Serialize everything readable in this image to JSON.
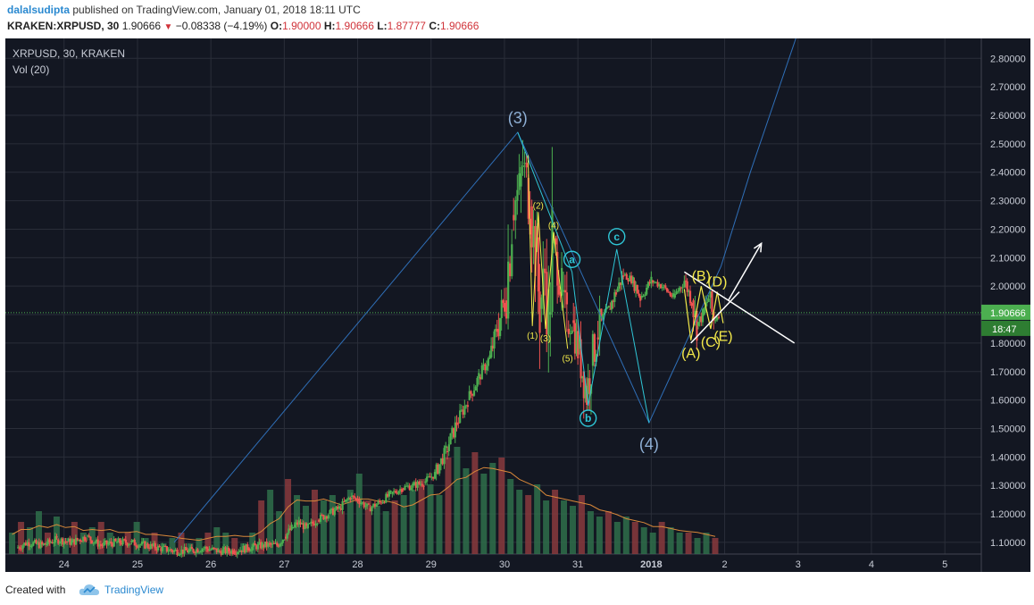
{
  "header": {
    "author": "dalalsudipta",
    "published_text": "published on TradingView.com, January 01, 2018 18:11 UTC",
    "symbol_line": "KRAKEN:XRPUSD, 30",
    "last_price": "1.90666",
    "change": "−0.08338 (−4.19%)",
    "open_label": "O:",
    "open": "1.90000",
    "high_label": "H:",
    "high": "1.90666",
    "low_label": "L:",
    "low": "1.87777",
    "close_label": "C:",
    "close": "1.90666"
  },
  "chart_data": {
    "type": "candlestick",
    "legend_symbol": "XRPUSD, 30, KRAKEN",
    "legend_indicator": "Vol (20)",
    "x_ticks": [
      "24",
      "25",
      "26",
      "27",
      "28",
      "29",
      "30",
      "31",
      "2018",
      "2",
      "3",
      "4",
      "5"
    ],
    "y_ticks": [
      "1.10000",
      "1.20000",
      "1.30000",
      "1.40000",
      "1.50000",
      "1.60000",
      "1.70000",
      "1.80000",
      "1.90000",
      "2.00000",
      "2.10000",
      "2.20000",
      "2.30000",
      "2.40000",
      "2.50000",
      "2.60000",
      "2.70000",
      "2.80000"
    ],
    "ylim": [
      1.03,
      2.87
    ],
    "xlim": [
      23.2,
      28.5
    ],
    "current_price_label": "1.90666",
    "countdown_label": "18:47",
    "price_path": [
      [
        23.35,
        1.08
      ],
      [
        23.5,
        1.1
      ],
      [
        23.7,
        1.09
      ],
      [
        23.9,
        1.11
      ],
      [
        24.1,
        1.1
      ],
      [
        24.3,
        1.12
      ],
      [
        24.5,
        1.09
      ],
      [
        24.7,
        1.1
      ],
      [
        24.9,
        1.1
      ],
      [
        25.1,
        1.09
      ],
      [
        25.3,
        1.08
      ],
      [
        25.5,
        1.07
      ],
      [
        25.7,
        1.07
      ],
      [
        25.9,
        1.08
      ],
      [
        26.1,
        1.07
      ],
      [
        26.3,
        1.07
      ],
      [
        26.5,
        1.08
      ],
      [
        26.7,
        1.09
      ],
      [
        26.9,
        1.09
      ],
      [
        27.0,
        1.12
      ],
      [
        27.1,
        1.15
      ],
      [
        27.2,
        1.17
      ],
      [
        27.3,
        1.15
      ],
      [
        27.45,
        1.18
      ],
      [
        27.6,
        1.2
      ],
      [
        27.75,
        1.22
      ],
      [
        27.9,
        1.26
      ],
      [
        28.0,
        1.25
      ],
      [
        28.15,
        1.22
      ],
      [
        28.3,
        1.24
      ],
      [
        28.45,
        1.27
      ],
      [
        28.6,
        1.29
      ],
      [
        28.75,
        1.3
      ],
      [
        28.9,
        1.31
      ],
      [
        29.05,
        1.34
      ],
      [
        29.2,
        1.42
      ],
      [
        29.35,
        1.52
      ],
      [
        29.5,
        1.6
      ],
      [
        29.65,
        1.68
      ],
      [
        29.8,
        1.75
      ],
      [
        29.9,
        1.85
      ],
      [
        30.0,
        1.95
      ],
      [
        30.05,
        2.08
      ],
      [
        30.1,
        2.25
      ],
      [
        30.15,
        2.3
      ],
      [
        30.2,
        2.35
      ],
      [
        30.25,
        2.43
      ],
      [
        30.3,
        2.38
      ],
      [
        30.35,
        2.28
      ],
      [
        30.42,
        2.12
      ],
      [
        30.48,
        1.92
      ],
      [
        30.55,
        2.05
      ],
      [
        30.6,
        1.9
      ],
      [
        30.65,
        2.15
      ],
      [
        30.7,
        2.12
      ],
      [
        30.78,
        1.98
      ],
      [
        30.85,
        1.85
      ],
      [
        30.92,
        1.88
      ],
      [
        31.0,
        1.78
      ],
      [
        31.06,
        1.7
      ],
      [
        31.12,
        1.62
      ],
      [
        31.18,
        1.72
      ],
      [
        31.25,
        1.82
      ],
      [
        31.32,
        1.88
      ],
      [
        31.42,
        1.92
      ],
      [
        31.52,
        1.98
      ],
      [
        31.62,
        2.04
      ],
      [
        31.75,
        2.02
      ],
      [
        31.85,
        1.96
      ],
      [
        32.0,
        2.02
      ],
      [
        32.15,
        2.0
      ],
      [
        32.3,
        1.96
      ],
      [
        32.45,
        2.02
      ],
      [
        32.55,
        1.95
      ],
      [
        32.62,
        1.86
      ],
      [
        32.7,
        1.9
      ],
      [
        32.78,
        1.96
      ],
      [
        32.85,
        1.88
      ],
      [
        32.92,
        1.91
      ]
    ],
    "annotations": {
      "major_wave": [
        {
          "label": "(3)",
          "x": 30.18,
          "y": 2.54
        },
        {
          "label": "(4)",
          "x": 31.97,
          "y": 1.52
        }
      ],
      "wave_line": [
        [
          25.5,
          1.1
        ],
        [
          30.18,
          2.54
        ],
        [
          31.97,
          1.52
        ],
        [
          32.95,
          2.07
        ],
        [
          33.35,
          2.4
        ],
        [
          33.97,
          2.87
        ]
      ],
      "abc": [
        {
          "label": "a",
          "x": 30.92,
          "y": 2.05
        },
        {
          "label": "b",
          "x": 31.14,
          "y": 1.58
        },
        {
          "label": "c",
          "x": 31.53,
          "y": 2.13
        }
      ],
      "abc_line": [
        [
          30.18,
          2.54
        ],
        [
          30.92,
          2.05
        ],
        [
          31.14,
          1.58
        ],
        [
          31.53,
          2.13
        ],
        [
          31.97,
          1.52
        ]
      ],
      "sub_waves": [
        {
          "label": "(2)",
          "x": 30.46,
          "y": 2.26
        },
        {
          "label": "(4)",
          "x": 30.67,
          "y": 2.19
        },
        {
          "label": "(1)",
          "x": 30.38,
          "y": 1.86
        },
        {
          "label": "(3)",
          "x": 30.56,
          "y": 1.85
        },
        {
          "label": "(5)",
          "x": 30.86,
          "y": 1.78
        }
      ],
      "sub_wave_line": [
        [
          30.32,
          2.46
        ],
        [
          30.38,
          1.86
        ],
        [
          30.46,
          2.26
        ],
        [
          30.56,
          1.85
        ],
        [
          30.67,
          2.19
        ],
        [
          30.86,
          1.78
        ]
      ],
      "triangle": [
        {
          "label": "(A)",
          "x": 32.54,
          "y": 1.81
        },
        {
          "label": "(B)",
          "x": 32.68,
          "y": 2.0
        },
        {
          "label": "(C)",
          "x": 32.81,
          "y": 1.85
        },
        {
          "label": "(D)",
          "x": 32.9,
          "y": 1.98
        },
        {
          "label": "(E)",
          "x": 32.98,
          "y": 1.87
        }
      ],
      "triangle_line": [
        [
          32.45,
          1.99
        ],
        [
          32.54,
          1.81
        ],
        [
          32.68,
          2.0
        ],
        [
          32.81,
          1.85
        ],
        [
          32.9,
          1.98
        ],
        [
          32.98,
          1.87
        ]
      ],
      "trend_upper": [
        [
          32.45,
          2.05
        ],
        [
          33.95,
          1.8
        ]
      ],
      "trend_lower": [
        [
          32.54,
          1.8
        ],
        [
          33.2,
          1.98
        ]
      ],
      "breakout_arrow": [
        [
          33.05,
          1.95
        ],
        [
          33.5,
          2.15
        ]
      ]
    },
    "volume_bars": [
      0.2,
      0.3,
      0.25,
      0.4,
      0.2,
      0.35,
      0.15,
      0.3,
      0.2,
      0.25,
      0.3,
      0.2,
      0.15,
      0.2,
      0.3,
      0.15,
      0.2,
      0.1,
      0.15,
      0.2,
      0.1,
      0.15,
      0.2,
      0.25,
      0.2,
      0.15,
      0.1,
      0.2,
      0.5,
      0.6,
      0.4,
      0.7,
      0.55,
      0.45,
      0.6,
      0.5,
      0.55,
      0.4,
      0.6,
      0.75,
      0.5,
      0.45,
      0.4,
      0.5,
      0.55,
      0.6,
      0.7,
      0.65,
      0.55,
      0.9,
      1.0,
      0.8,
      0.95,
      0.75,
      0.85,
      0.9,
      0.7,
      0.6,
      0.55,
      0.65,
      0.5,
      0.6,
      0.5,
      0.45,
      0.55,
      0.4,
      0.35,
      0.4,
      0.3,
      0.35,
      0.3,
      0.25,
      0.2,
      0.3,
      0.25,
      0.2,
      0.2,
      0.15,
      0.2,
      0.15
    ],
    "colors": {
      "background": "#131722",
      "grid": "#2a2e39",
      "bull": "#4caf50",
      "bear": "#ef5350",
      "wave_line": "#2f6fb8",
      "wave_label": "#8fb0d6",
      "abc": "#2fc6d6",
      "sub_wave": "#f3e94a",
      "trend": "#ffffff",
      "price_badge": "#4caf50",
      "volume_ma": "#d9883a"
    }
  },
  "footer": {
    "created_with": "Created with",
    "brand": "TradingView"
  }
}
